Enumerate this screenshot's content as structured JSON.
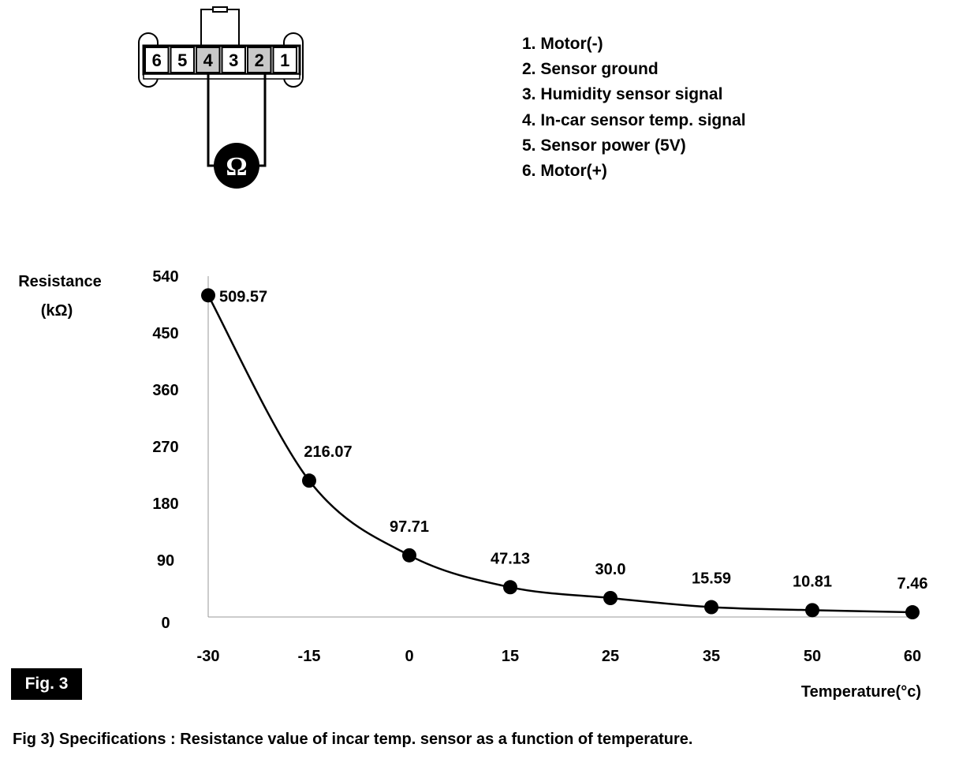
{
  "connector": {
    "pins_left_to_right": [
      "6",
      "5",
      "4",
      "3",
      "2",
      "1"
    ],
    "highlighted_pins": [
      "4",
      "2"
    ],
    "meter_symbol": "Ω"
  },
  "pin_legend": [
    "1. Motor(-)",
    "2. Sensor ground",
    "3. Humidity sensor signal",
    "4. In-car sensor temp. signal",
    "5. Sensor power (5V)",
    "6. Motor(+)"
  ],
  "figure_badge": "Fig. 3",
  "caption": "Fig 3) Specifications : Resistance value of incar temp. sensor as a function of temperature.",
  "chart_data": {
    "type": "line",
    "title": "",
    "ylabel_line1": "Resistance",
    "ylabel_line2": "(kΩ)",
    "xlabel": "Temperature(°c)",
    "x": [
      "-30",
      "-15",
      "0",
      "15",
      "25",
      "35",
      "50",
      "60"
    ],
    "values": [
      509.57,
      216.07,
      97.71,
      47.13,
      30.0,
      15.59,
      10.81,
      7.46
    ],
    "data_labels": [
      "509.57",
      "216.07",
      "97.71",
      "47.13",
      "30.0",
      "15.59",
      "10.81",
      "7.46"
    ],
    "y_ticks": [
      "0",
      "90",
      "180",
      "270",
      "360",
      "450",
      "540"
    ],
    "ylim": [
      0,
      540
    ],
    "grid": false,
    "legend": "none",
    "line_color": "#000000",
    "marker_color": "#000000"
  }
}
